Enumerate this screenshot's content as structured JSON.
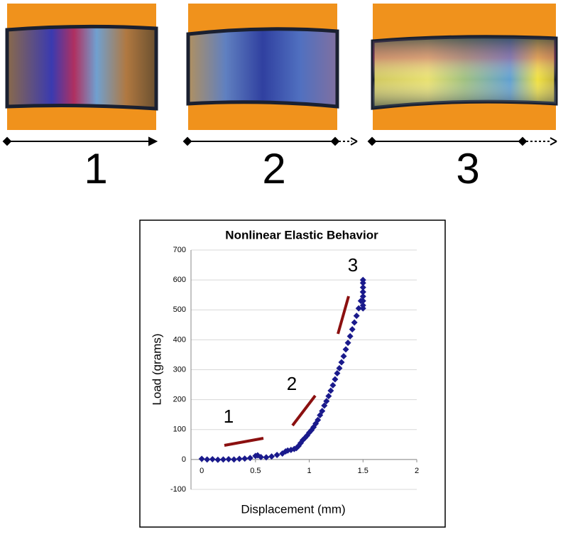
{
  "panel_labels": [
    "1",
    "2",
    "3"
  ],
  "chart_data": {
    "type": "scatter",
    "title": "Nonlinear Elastic Behavior",
    "x_label": "Displacement (mm)",
    "y_label": "Load (grams)",
    "xlim": [
      -0.1,
      2
    ],
    "xticks": [
      0,
      0.5,
      1,
      1.5,
      2
    ],
    "ylim": [
      -100,
      700
    ],
    "yticks": [
      -100,
      0,
      100,
      200,
      300,
      400,
      500,
      600,
      700
    ],
    "grid": true,
    "color": "#1a1a8c",
    "annotations": [
      "1",
      "2",
      "3"
    ],
    "series": [
      {
        "name": "Load",
        "x": [
          0,
          0.05,
          0.1,
          0.15,
          0.2,
          0.25,
          0.3,
          0.35,
          0.4,
          0.45,
          0.5,
          0.52,
          0.55,
          0.6,
          0.65,
          0.7,
          0.75,
          0.78,
          0.8,
          0.83,
          0.86,
          0.88,
          0.9,
          0.92,
          0.94,
          0.96,
          0.98,
          1.0,
          1.02,
          1.04,
          1.06,
          1.08,
          1.1,
          1.12,
          1.14,
          1.16,
          1.18,
          1.2,
          1.22,
          1.24,
          1.26,
          1.28,
          1.3,
          1.32,
          1.34,
          1.36,
          1.38,
          1.4,
          1.42,
          1.44,
          1.46,
          1.48,
          1.5,
          1.5,
          1.5,
          1.5,
          1.5,
          1.5,
          1.5,
          1.5,
          1.5
        ],
        "values": [
          2,
          0,
          1,
          -1,
          0,
          1,
          0,
          2,
          3,
          5,
          12,
          14,
          8,
          7,
          10,
          15,
          20,
          27,
          30,
          32,
          35,
          38,
          45,
          55,
          65,
          72,
          80,
          90,
          98,
          108,
          120,
          132,
          148,
          162,
          180,
          195,
          212,
          230,
          248,
          268,
          288,
          305,
          325,
          345,
          368,
          390,
          412,
          435,
          458,
          480,
          505,
          530,
          560,
          600,
          590,
          575,
          560,
          545,
          530,
          515,
          505
        ]
      }
    ]
  }
}
